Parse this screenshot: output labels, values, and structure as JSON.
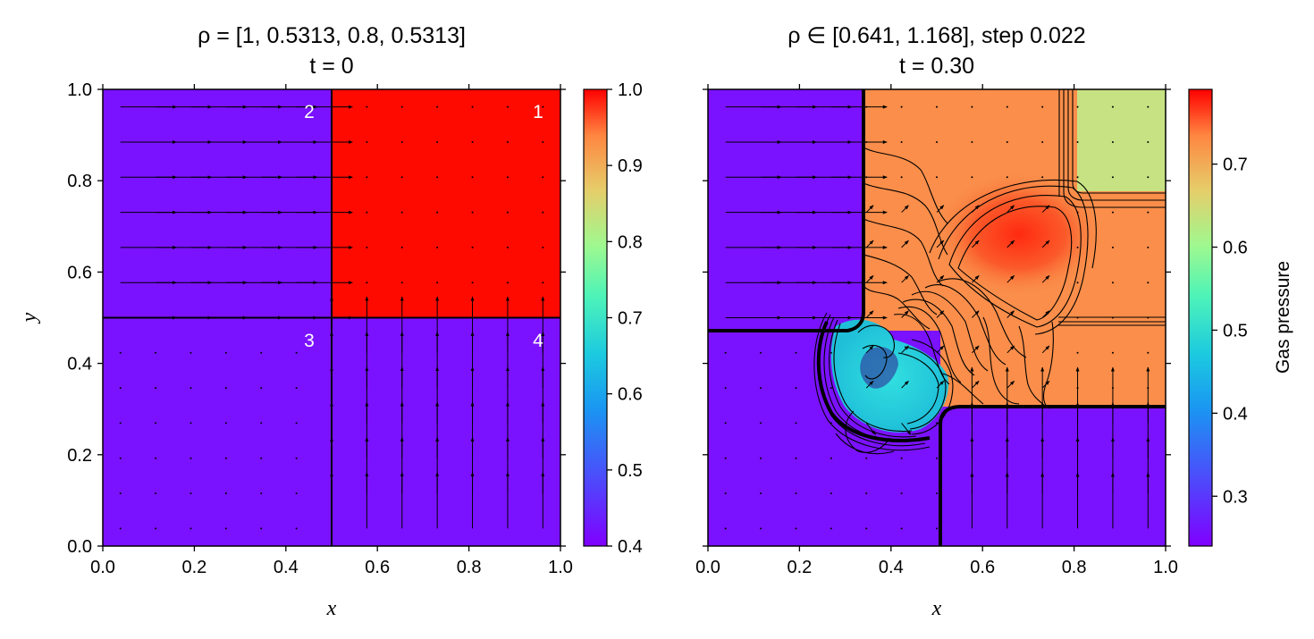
{
  "colors": {
    "purple": "#7b12ff",
    "red": "#ff0a00",
    "orange": "#fa8e4a",
    "lightgreen": "#c6e283",
    "cyan": "#2fd6d6",
    "black": "#000000",
    "white": "#ffffff"
  },
  "chart_data": [
    {
      "type": "heatmap",
      "title_line1": "ρ = [1, 0.5313, 0.8, 0.5313]",
      "title_line2": "t = 0",
      "xlabel": "x",
      "ylabel": "y",
      "xlim": [
        0,
        1
      ],
      "ylim": [
        0,
        1
      ],
      "xticks": [
        "0.0",
        "0.2",
        "0.4",
        "0.6",
        "0.8",
        "1.0"
      ],
      "yticks": [
        "0.0",
        "0.2",
        "0.4",
        "0.6",
        "0.8",
        "1.0"
      ],
      "quadrant_labels": [
        "1",
        "2",
        "3",
        "4"
      ],
      "regions": [
        {
          "quadrant": "1",
          "x": [
            0.5,
            1
          ],
          "y": [
            0.5,
            1
          ],
          "color": "#ff0a00",
          "value": 1.0
        },
        {
          "quadrant": "2",
          "x": [
            0,
            0.5
          ],
          "y": [
            0.5,
            1
          ],
          "color": "#7b12ff",
          "value": 0.4
        },
        {
          "quadrant": "3",
          "x": [
            0,
            0.5
          ],
          "y": [
            0,
            0.5
          ],
          "color": "#7b12ff",
          "value": 0.4
        },
        {
          "quadrant": "4",
          "x": [
            0.5,
            1
          ],
          "y": [
            0,
            0.5
          ],
          "color": "#7b12ff",
          "value": 0.4
        }
      ],
      "velocity": {
        "quadrant2": [
          1.206,
          0
        ],
        "quadrant4": [
          0,
          1.206
        ],
        "quadrant1": [
          0,
          0
        ],
        "quadrant3": [
          0,
          0
        ]
      },
      "colorbar": {
        "range": [
          0.4,
          1.0
        ],
        "ticks": [
          "0.4",
          "0.5",
          "0.6",
          "0.7",
          "0.8",
          "0.9",
          "1.0"
        ],
        "colormap": "rainbow"
      }
    },
    {
      "type": "heatmap",
      "title_line1": "ρ ∈ [0.641, 1.168], step 0.022",
      "title_line2": "t = 0.30",
      "xlabel": "x",
      "xlim": [
        0,
        1
      ],
      "ylim": [
        0,
        1
      ],
      "xticks": [
        "0.0",
        "0.2",
        "0.4",
        "0.6",
        "0.8",
        "1.0"
      ],
      "contours": {
        "min": 0.641,
        "max": 1.168,
        "step": 0.022
      },
      "colorbar": {
        "range": [
          0.24,
          0.79
        ],
        "ticks": [
          "0.3",
          "0.4",
          "0.5",
          "0.6",
          "0.7"
        ],
        "label": "Gas pressure",
        "colormap": "rainbow"
      }
    }
  ]
}
